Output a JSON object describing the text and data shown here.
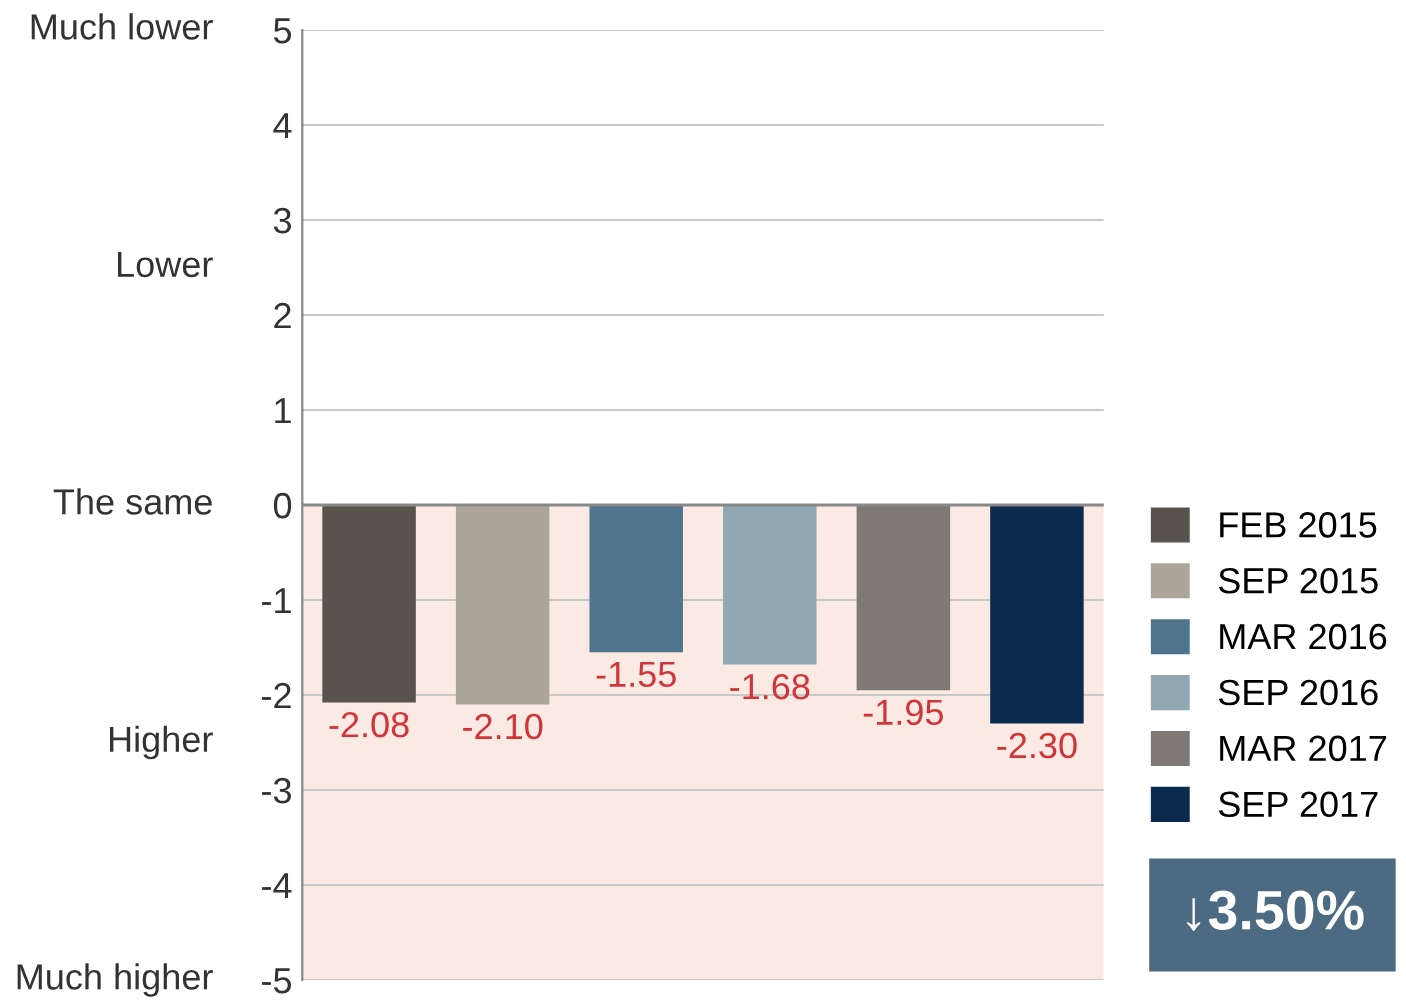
{
  "chart_data": {
    "type": "bar",
    "categories": [
      null,
      null,
      null,
      null,
      null,
      null
    ],
    "series": [
      {
        "name": "FEB 2015",
        "color": "#59534e",
        "values": [
          -2.08,
          null,
          null,
          null,
          null,
          null
        ],
        "value_labels": [
          "-2.08",
          null,
          null,
          null,
          null,
          null
        ]
      },
      {
        "name": "SEP 2015",
        "color": "#aca59a",
        "values": [
          null,
          -2.1,
          null,
          null,
          null,
          null
        ],
        "value_labels": [
          null,
          "-2.10",
          null,
          null,
          null,
          null
        ]
      },
      {
        "name": "MAR 2016",
        "color": "#4e7490",
        "values": [
          null,
          null,
          -1.55,
          null,
          null,
          null
        ],
        "value_labels": [
          null,
          null,
          "-1.55",
          null,
          null,
          null
        ]
      },
      {
        "name": "SEP 2016",
        "color": "#91a8b2",
        "values": [
          null,
          null,
          null,
          -1.68,
          null,
          null
        ],
        "value_labels": [
          null,
          null,
          null,
          "-1.68",
          null,
          null
        ]
      },
      {
        "name": "MAR 2017",
        "color": "#7f7975",
        "values": [
          null,
          null,
          null,
          null,
          -1.95,
          null
        ],
        "value_labels": [
          null,
          null,
          null,
          null,
          "-1.95",
          null
        ]
      },
      {
        "name": "SEP 2017",
        "color": "#0a2a4e",
        "values": [
          null,
          null,
          null,
          null,
          null,
          -2.3
        ],
        "value_labels": [
          null,
          null,
          null,
          null,
          null,
          "-2.30"
        ]
      }
    ],
    "ylim": [
      -5,
      5
    ],
    "yticks": [
      5,
      4,
      3,
      2,
      1,
      0,
      -1,
      -2,
      -3,
      -4,
      -5
    ],
    "bands": [
      {
        "axis": "y",
        "from": -5,
        "to": 0,
        "color": "#fbeae3"
      }
    ],
    "grid": "y",
    "legend": "right",
    "annotations": [
      "Much lower",
      "Lower",
      "The same",
      "Higher",
      "Much higher",
      "↓3.50%"
    ]
  }
}
